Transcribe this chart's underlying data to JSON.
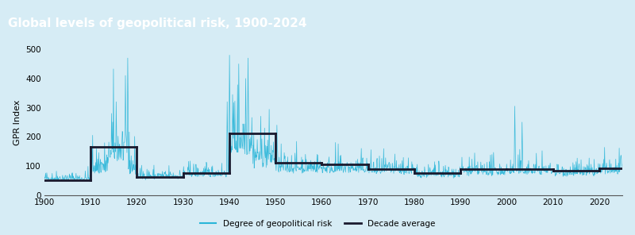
{
  "title": "Global levels of geopolitical risk, 1900-2024",
  "title_bg_color": "#1aa3c8",
  "title_text_color": "#ffffff",
  "background_color": "#d6ecf5",
  "plot_bg_color": "#d6ecf5",
  "ylabel": "GPR Index",
  "xlim": [
    1900,
    2025
  ],
  "ylim": [
    0,
    500
  ],
  "yticks": [
    0,
    100,
    200,
    300,
    400,
    500
  ],
  "xticks": [
    1900,
    1910,
    1920,
    1930,
    1940,
    1950,
    1960,
    1970,
    1980,
    1990,
    2000,
    2010,
    2020
  ],
  "line_color": "#29b5d8",
  "decade_line_color": "#1a1a2e",
  "decade_averages": [
    {
      "start": 1900,
      "end": 1910,
      "value": 50
    },
    {
      "start": 1910,
      "end": 1920,
      "value": 165
    },
    {
      "start": 1920,
      "end": 1930,
      "value": 62
    },
    {
      "start": 1930,
      "end": 1940,
      "value": 75
    },
    {
      "start": 1940,
      "end": 1950,
      "value": 212
    },
    {
      "start": 1950,
      "end": 1960,
      "value": 110
    },
    {
      "start": 1960,
      "end": 1970,
      "value": 105
    },
    {
      "start": 1970,
      "end": 1980,
      "value": 90
    },
    {
      "start": 1980,
      "end": 1990,
      "value": 75
    },
    {
      "start": 1990,
      "end": 2000,
      "value": 88
    },
    {
      "start": 2000,
      "end": 2010,
      "value": 90
    },
    {
      "start": 2010,
      "end": 2020,
      "value": 83
    },
    {
      "start": 2020,
      "end": 2025,
      "value": 92
    }
  ],
  "legend_labels": [
    "Degree of geopolitical risk",
    "Decade average"
  ],
  "legend_colors": [
    "#29b5d8",
    "#1a1a2e"
  ],
  "seed": 42
}
